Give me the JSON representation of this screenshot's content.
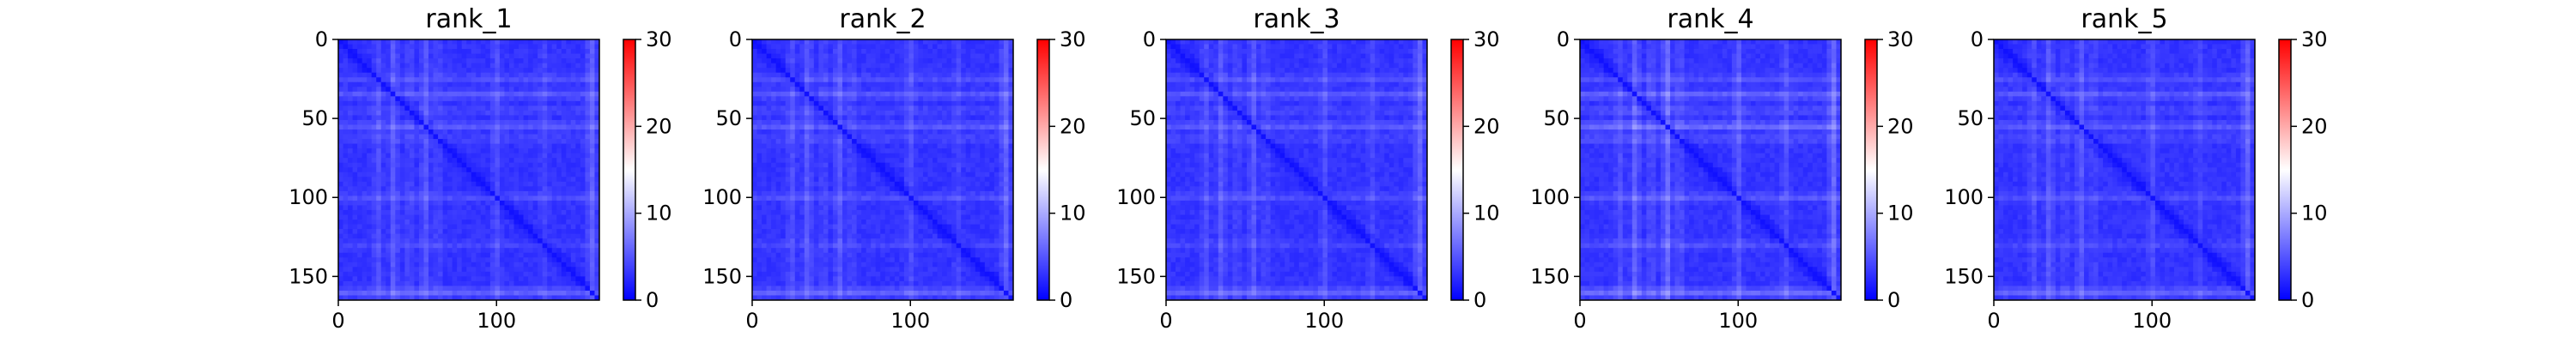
{
  "figure": {
    "background": "#ffffff"
  },
  "colormap": {
    "name": "bwr",
    "low": "#0000ff",
    "mid": "#ffffff",
    "high": "#ff0000"
  },
  "chart_data": [
    {
      "type": "heatmap",
      "title": "rank_1",
      "xlabel": "",
      "ylabel": "",
      "xlim": [
        0,
        165
      ],
      "ylim": [
        165,
        0
      ],
      "xticks": [
        0,
        100
      ],
      "yticks": [
        0,
        50,
        100,
        150
      ],
      "x_tick_labels": [
        "0",
        "100"
      ],
      "y_tick_labels": [
        "0",
        "50",
        "100",
        "150"
      ],
      "matrix_size": 165,
      "value_range": [
        0,
        30
      ],
      "colorbar": {
        "ticks": [
          0,
          10,
          20,
          30
        ],
        "tick_labels": [
          "0",
          "10",
          "20",
          "30"
        ]
      },
      "diagonal_value": 1,
      "typical_offdiag_value": 3,
      "bright_bands": [
        {
          "center": 25,
          "value": 6
        },
        {
          "center": 35,
          "value": 7
        },
        {
          "center": 45,
          "value": 5
        },
        {
          "center": 55,
          "value": 7
        },
        {
          "center": 63,
          "value": 5
        },
        {
          "center": 100,
          "value": 6
        },
        {
          "center": 130,
          "value": 5
        },
        {
          "center": 160,
          "value": 8
        }
      ],
      "grid": false,
      "legend": "none"
    },
    {
      "type": "heatmap",
      "title": "rank_2",
      "xlabel": "",
      "ylabel": "",
      "xlim": [
        0,
        165
      ],
      "ylim": [
        165,
        0
      ],
      "xticks": [
        0,
        100
      ],
      "yticks": [
        0,
        50,
        100,
        150
      ],
      "x_tick_labels": [
        "0",
        "100"
      ],
      "y_tick_labels": [
        "0",
        "50",
        "100",
        "150"
      ],
      "matrix_size": 165,
      "value_range": [
        0,
        30
      ],
      "colorbar": {
        "ticks": [
          0,
          10,
          20,
          30
        ],
        "tick_labels": [
          "0",
          "10",
          "20",
          "30"
        ]
      },
      "diagonal_value": 1,
      "typical_offdiag_value": 3,
      "bright_bands": [
        {
          "center": 25,
          "value": 6
        },
        {
          "center": 35,
          "value": 7
        },
        {
          "center": 45,
          "value": 5
        },
        {
          "center": 55,
          "value": 7
        },
        {
          "center": 63,
          "value": 5
        },
        {
          "center": 100,
          "value": 6
        },
        {
          "center": 130,
          "value": 5
        },
        {
          "center": 160,
          "value": 8
        }
      ],
      "grid": false,
      "legend": "none"
    },
    {
      "type": "heatmap",
      "title": "rank_3",
      "xlabel": "",
      "ylabel": "",
      "xlim": [
        0,
        165
      ],
      "ylim": [
        165,
        0
      ],
      "xticks": [
        0,
        100
      ],
      "yticks": [
        0,
        50,
        100,
        150
      ],
      "x_tick_labels": [
        "0",
        "100"
      ],
      "y_tick_labels": [
        "0",
        "50",
        "100",
        "150"
      ],
      "matrix_size": 165,
      "value_range": [
        0,
        30
      ],
      "colorbar": {
        "ticks": [
          0,
          10,
          20,
          30
        ],
        "tick_labels": [
          "0",
          "10",
          "20",
          "30"
        ]
      },
      "diagonal_value": 1,
      "typical_offdiag_value": 3,
      "bright_bands": [
        {
          "center": 25,
          "value": 6
        },
        {
          "center": 35,
          "value": 7
        },
        {
          "center": 45,
          "value": 5
        },
        {
          "center": 55,
          "value": 7
        },
        {
          "center": 63,
          "value": 5
        },
        {
          "center": 100,
          "value": 6
        },
        {
          "center": 130,
          "value": 5
        },
        {
          "center": 160,
          "value": 8
        }
      ],
      "grid": false,
      "legend": "none"
    },
    {
      "type": "heatmap",
      "title": "rank_4",
      "xlabel": "",
      "ylabel": "",
      "xlim": [
        0,
        165
      ],
      "ylim": [
        165,
        0
      ],
      "xticks": [
        0,
        100
      ],
      "yticks": [
        0,
        50,
        100,
        150
      ],
      "x_tick_labels": [
        "0",
        "100"
      ],
      "y_tick_labels": [
        "0",
        "50",
        "100",
        "150"
      ],
      "matrix_size": 165,
      "value_range": [
        0,
        30
      ],
      "colorbar": {
        "ticks": [
          0,
          10,
          20,
          30
        ],
        "tick_labels": [
          "0",
          "10",
          "20",
          "30"
        ]
      },
      "diagonal_value": 1,
      "typical_offdiag_value": 3,
      "bright_bands": [
        {
          "center": 25,
          "value": 6
        },
        {
          "center": 35,
          "value": 8
        },
        {
          "center": 45,
          "value": 6
        },
        {
          "center": 55,
          "value": 9
        },
        {
          "center": 63,
          "value": 6
        },
        {
          "center": 100,
          "value": 7
        },
        {
          "center": 130,
          "value": 6
        },
        {
          "center": 160,
          "value": 9
        }
      ],
      "grid": false,
      "legend": "none"
    },
    {
      "type": "heatmap",
      "title": "rank_5",
      "xlabel": "",
      "ylabel": "",
      "xlim": [
        0,
        165
      ],
      "ylim": [
        165,
        0
      ],
      "xticks": [
        0,
        100
      ],
      "yticks": [
        0,
        50,
        100,
        150
      ],
      "x_tick_labels": [
        "0",
        "100"
      ],
      "y_tick_labels": [
        "0",
        "50",
        "100",
        "150"
      ],
      "matrix_size": 165,
      "value_range": [
        0,
        30
      ],
      "colorbar": {
        "ticks": [
          0,
          10,
          20,
          30
        ],
        "tick_labels": [
          "0",
          "10",
          "20",
          "30"
        ]
      },
      "diagonal_value": 1,
      "typical_offdiag_value": 3,
      "bright_bands": [
        {
          "center": 25,
          "value": 6
        },
        {
          "center": 35,
          "value": 7
        },
        {
          "center": 45,
          "value": 5
        },
        {
          "center": 55,
          "value": 7
        },
        {
          "center": 63,
          "value": 5
        },
        {
          "center": 100,
          "value": 6
        },
        {
          "center": 130,
          "value": 5
        },
        {
          "center": 160,
          "value": 8
        }
      ],
      "grid": false,
      "legend": "none"
    }
  ]
}
